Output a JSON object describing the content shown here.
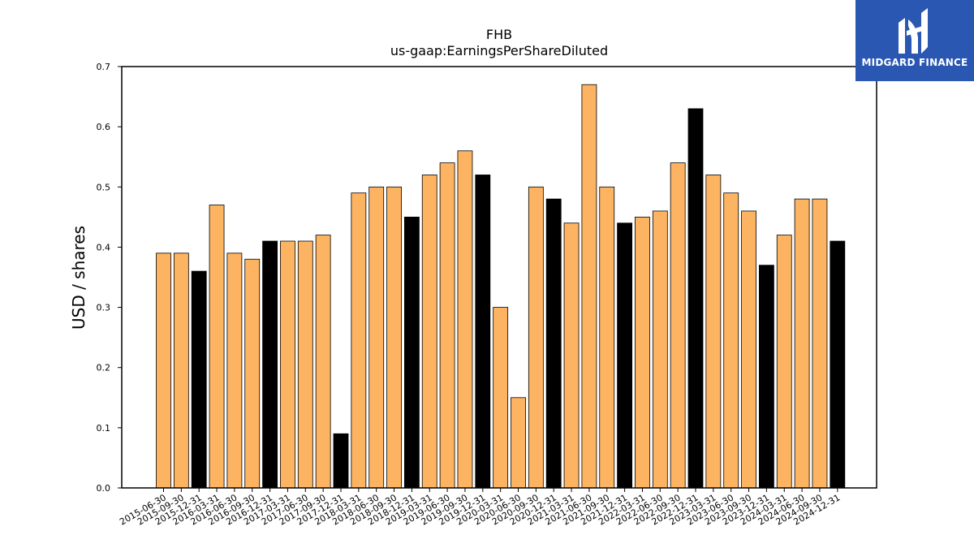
{
  "logo": {
    "text": "MIDGARD FINANCE",
    "icon": "midgard-logo-icon",
    "background": "#2a57b2"
  },
  "colors": {
    "bar_default": "#fdb462",
    "bar_highlight": "#000000",
    "bar_edge": "#000000"
  },
  "chart_data": {
    "type": "bar",
    "title": "FHB",
    "subtitle": "us-gaap:EarningsPerShareDiluted",
    "xlabel": "",
    "ylabel": "USD / shares",
    "ylim": [
      0,
      0.7
    ],
    "yticks": [
      0.0,
      0.1,
      0.2,
      0.3,
      0.4,
      0.5,
      0.6,
      0.7
    ],
    "ytick_labels": [
      "0.0",
      "0.1",
      "0.2",
      "0.3",
      "0.4",
      "0.5",
      "0.6",
      "0.7"
    ],
    "grid": false,
    "categories": [
      "2015-06-30",
      "2015-09-30",
      "2015-12-31",
      "2016-03-31",
      "2016-06-30",
      "2016-09-30",
      "2016-12-31",
      "2017-03-31",
      "2017-06-30",
      "2017-09-30",
      "2017-12-31",
      "2018-03-31",
      "2018-06-30",
      "2018-09-30",
      "2018-12-31",
      "2019-03-31",
      "2019-06-30",
      "2019-09-30",
      "2019-12-31",
      "2020-03-31",
      "2020-06-30",
      "2020-09-30",
      "2020-12-31",
      "2021-03-31",
      "2021-06-30",
      "2021-09-30",
      "2021-12-31",
      "2022-03-31",
      "2022-06-30",
      "2022-09-30",
      "2022-12-31",
      "2023-03-31",
      "2023-06-30",
      "2023-09-30",
      "2023-12-31",
      "2024-03-31",
      "2024-06-30",
      "2024-09-30",
      "2024-12-31"
    ],
    "values": [
      0.39,
      0.39,
      0.36,
      0.47,
      0.39,
      0.38,
      0.41,
      0.41,
      0.41,
      0.42,
      0.09,
      0.49,
      0.5,
      0.5,
      0.45,
      0.52,
      0.54,
      0.56,
      0.52,
      0.3,
      0.15,
      0.5,
      0.48,
      0.44,
      0.67,
      0.5,
      0.44,
      0.45,
      0.46,
      0.54,
      0.63,
      0.52,
      0.49,
      0.46,
      0.37,
      0.42,
      0.48,
      0.48,
      0.41
    ],
    "highlight_rule": "Q4 periods (ending -12-31) drawn in black; other quarters in orange"
  }
}
